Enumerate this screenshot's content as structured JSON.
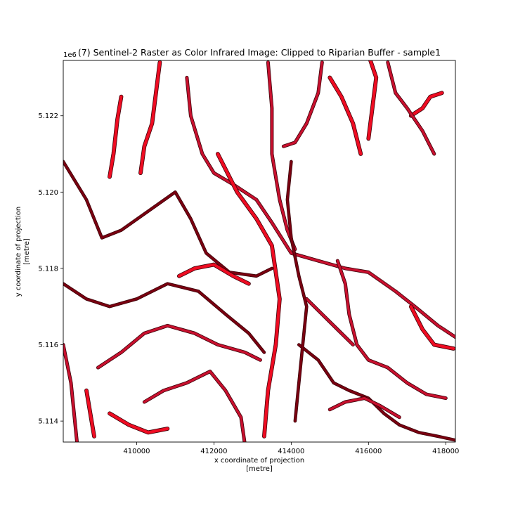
{
  "title": "(7) Sentinel-2 Raster as Color Infrared Image: Clipped to Riparian Buffer - sample1",
  "chart_data": {
    "type": "heatmap",
    "title": "(7) Sentinel-2 Raster as Color Infrared Image: Clipped to Riparian Buffer - sample1",
    "xlabel": "x coordinate of projection\n[metre]",
    "ylabel": "y coordinate of projection\n[metre]",
    "y_offset_label": "1e6",
    "xlim": [
      408100,
      418250
    ],
    "ylim": [
      5.11345,
      5.12345
    ],
    "x_ticks": [
      410000,
      412000,
      414000,
      416000,
      418000
    ],
    "x_tick_labels": [
      "410000",
      "412000",
      "414000",
      "416000",
      "418000"
    ],
    "y_ticks": [
      5.114,
      5.116,
      5.118,
      5.12,
      5.122
    ],
    "y_tick_labels": [
      "5.114",
      "5.116",
      "5.118",
      "5.120",
      "5.122"
    ],
    "grid": false,
    "colors": {
      "bright": "#ee0c22",
      "mid": "#c8102e",
      "dark": "#7a0010",
      "outline": "#3a0008"
    },
    "streams": [
      {
        "tone": "bright",
        "pts": [
          [
            410600,
            5.1234
          ],
          [
            410500,
            5.1226
          ],
          [
            410400,
            5.1218
          ],
          [
            410200,
            5.1212
          ],
          [
            410100,
            5.1205
          ]
        ]
      },
      {
        "tone": "bright",
        "pts": [
          [
            409600,
            5.1225
          ],
          [
            409500,
            5.1219
          ],
          [
            409400,
            5.121
          ],
          [
            409300,
            5.1204
          ]
        ]
      },
      {
        "tone": "dark",
        "pts": [
          [
            408100,
            5.1208
          ],
          [
            408700,
            5.1198
          ],
          [
            409100,
            5.1188
          ],
          [
            409600,
            5.119
          ],
          [
            410300,
            5.1195
          ],
          [
            411000,
            5.12
          ],
          [
            411400,
            5.1193
          ],
          [
            411800,
            5.1184
          ],
          [
            412400,
            5.1179
          ],
          [
            413100,
            5.1178
          ],
          [
            413500,
            5.118
          ]
        ]
      },
      {
        "tone": "mid",
        "pts": [
          [
            411300,
            5.123
          ],
          [
            411400,
            5.122
          ],
          [
            411700,
            5.121
          ],
          [
            412000,
            5.1205
          ],
          [
            412500,
            5.1202
          ],
          [
            413100,
            5.1198
          ],
          [
            413500,
            5.1192
          ],
          [
            414000,
            5.1184
          ],
          [
            414700,
            5.1182
          ],
          [
            415400,
            5.118
          ],
          [
            416000,
            5.1179
          ],
          [
            416700,
            5.1174
          ],
          [
            417200,
            5.117
          ],
          [
            417800,
            5.1165
          ],
          [
            418250,
            5.1162
          ]
        ]
      },
      {
        "tone": "bright",
        "pts": [
          [
            412100,
            5.121
          ],
          [
            412600,
            5.12
          ],
          [
            413100,
            5.1193
          ],
          [
            413500,
            5.1186
          ],
          [
            413700,
            5.1172
          ],
          [
            413600,
            5.116
          ],
          [
            413400,
            5.1148
          ],
          [
            413300,
            5.1136
          ]
        ]
      },
      {
        "tone": "mid",
        "pts": [
          [
            413400,
            5.1234
          ],
          [
            413500,
            5.1222
          ],
          [
            413500,
            5.121
          ],
          [
            413700,
            5.1198
          ],
          [
            413900,
            5.119
          ],
          [
            414100,
            5.1185
          ]
        ]
      },
      {
        "tone": "dark",
        "pts": [
          [
            408100,
            5.1176
          ],
          [
            408700,
            5.1172
          ],
          [
            409300,
            5.117
          ],
          [
            410000,
            5.1172
          ],
          [
            410800,
            5.1176
          ],
          [
            411600,
            5.1174
          ],
          [
            412300,
            5.1168
          ],
          [
            412900,
            5.1163
          ],
          [
            413300,
            5.1158
          ]
        ]
      },
      {
        "tone": "mid",
        "pts": [
          [
            409000,
            5.1154
          ],
          [
            409600,
            5.1158
          ],
          [
            410200,
            5.1163
          ],
          [
            410800,
            5.1165
          ],
          [
            411500,
            5.1163
          ],
          [
            412100,
            5.116
          ],
          [
            412800,
            5.1158
          ],
          [
            413200,
            5.1156
          ]
        ]
      },
      {
        "tone": "bright",
        "pts": [
          [
            411100,
            5.1178
          ],
          [
            411500,
            5.118
          ],
          [
            412000,
            5.1181
          ],
          [
            412500,
            5.1178
          ],
          [
            412900,
            5.1176
          ]
        ]
      },
      {
        "tone": "mid",
        "pts": [
          [
            410200,
            5.1145
          ],
          [
            410700,
            5.1148
          ],
          [
            411300,
            5.115
          ],
          [
            411900,
            5.1153
          ],
          [
            412300,
            5.1148
          ],
          [
            412700,
            5.1141
          ],
          [
            412800,
            5.1134
          ]
        ]
      },
      {
        "tone": "bright",
        "pts": [
          [
            409300,
            5.1142
          ],
          [
            409800,
            5.1139
          ],
          [
            410300,
            5.1137
          ],
          [
            410800,
            5.1138
          ]
        ]
      },
      {
        "tone": "mid",
        "pts": [
          [
            414800,
            5.1234
          ],
          [
            414700,
            5.1226
          ],
          [
            414400,
            5.1218
          ],
          [
            414100,
            5.1213
          ],
          [
            413800,
            5.1212
          ]
        ]
      },
      {
        "tone": "bright",
        "pts": [
          [
            415000,
            5.123
          ],
          [
            415300,
            5.1225
          ],
          [
            415600,
            5.1218
          ],
          [
            415800,
            5.121
          ]
        ]
      },
      {
        "tone": "bright",
        "pts": [
          [
            416000,
            5.1236
          ],
          [
            416200,
            5.123
          ],
          [
            416100,
            5.1222
          ],
          [
            416000,
            5.1214
          ]
        ]
      },
      {
        "tone": "mid",
        "pts": [
          [
            415200,
            5.1182
          ],
          [
            415400,
            5.1176
          ],
          [
            415500,
            5.1168
          ],
          [
            415700,
            5.116
          ],
          [
            416000,
            5.1156
          ],
          [
            416500,
            5.1154
          ],
          [
            417000,
            5.115
          ],
          [
            417500,
            5.1147
          ],
          [
            418000,
            5.1146
          ]
        ]
      },
      {
        "tone": "mid",
        "pts": [
          [
            414400,
            5.1172
          ],
          [
            414800,
            5.1168
          ],
          [
            415200,
            5.1164
          ],
          [
            415600,
            5.116
          ]
        ]
      },
      {
        "tone": "dark",
        "pts": [
          [
            414200,
            5.116
          ],
          [
            414700,
            5.1156
          ],
          [
            415100,
            5.115
          ],
          [
            415500,
            5.1148
          ],
          [
            416000,
            5.1146
          ],
          [
            416400,
            5.1142
          ],
          [
            416800,
            5.1139
          ],
          [
            417300,
            5.1137
          ],
          [
            417800,
            5.1136
          ],
          [
            418250,
            5.1135
          ]
        ]
      },
      {
        "tone": "mid",
        "pts": [
          [
            415000,
            5.1143
          ],
          [
            415400,
            5.1145
          ],
          [
            415900,
            5.1146
          ],
          [
            416300,
            5.1144
          ],
          [
            416800,
            5.1141
          ]
        ]
      },
      {
        "tone": "bright",
        "pts": [
          [
            417100,
            5.117
          ],
          [
            417400,
            5.1164
          ],
          [
            417700,
            5.116
          ],
          [
            418200,
            5.1159
          ]
        ]
      },
      {
        "tone": "bright",
        "pts": [
          [
            417100,
            5.122
          ],
          [
            417400,
            5.1222
          ],
          [
            417600,
            5.1225
          ],
          [
            417900,
            5.1226
          ]
        ]
      },
      {
        "tone": "mid",
        "pts": [
          [
            408100,
            5.116
          ],
          [
            408300,
            5.115
          ],
          [
            408400,
            5.114
          ],
          [
            408500,
            5.113
          ]
        ]
      },
      {
        "tone": "bright",
        "pts": [
          [
            408700,
            5.1148
          ],
          [
            408800,
            5.1142
          ],
          [
            408900,
            5.1136
          ]
        ]
      },
      {
        "tone": "mid",
        "pts": [
          [
            416500,
            5.1234
          ],
          [
            416700,
            5.1226
          ],
          [
            417000,
            5.1222
          ],
          [
            417400,
            5.1216
          ],
          [
            417700,
            5.121
          ]
        ]
      },
      {
        "tone": "dark",
        "pts": [
          [
            414000,
            5.1208
          ],
          [
            413900,
            5.1198
          ],
          [
            414000,
            5.1188
          ],
          [
            414200,
            5.1178
          ],
          [
            414400,
            5.117
          ],
          [
            414300,
            5.116
          ],
          [
            414200,
            5.115
          ],
          [
            414100,
            5.114
          ]
        ]
      }
    ]
  }
}
